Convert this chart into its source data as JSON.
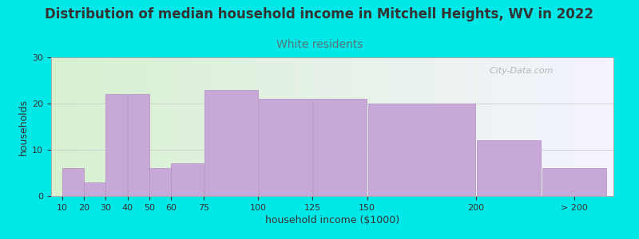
{
  "title": "Distribution of median household income in Mitchell Heights, WV in 2022",
  "subtitle": "White residents",
  "xlabel": "household income ($1000)",
  "ylabel": "households",
  "bar_heights": [
    6,
    3,
    22,
    22,
    6,
    7,
    23,
    21,
    21,
    20,
    12,
    6
  ],
  "bar_color": "#c8a8d8",
  "bar_edge_color": "#b090c0",
  "ylim": [
    0,
    30
  ],
  "yticks": [
    0,
    10,
    20,
    30
  ],
  "background_color": "#00e8e8",
  "plot_bg_left": "#d8f0d0",
  "plot_bg_right": "#f4f4ff",
  "title_fontsize": 12,
  "title_color": "#333333",
  "subtitle_fontsize": 10,
  "subtitle_color": "#557777",
  "axis_label_fontsize": 9,
  "tick_fontsize": 8,
  "watermark_text": "  City-Data.com",
  "watermark_color": "#aaaaaa",
  "tick_positions": [
    10,
    20,
    30,
    40,
    50,
    60,
    75,
    100,
    125,
    150,
    200,
    230,
    260
  ],
  "xtick_vals": [
    10,
    20,
    30,
    40,
    50,
    60,
    75,
    100,
    125,
    150,
    200,
    245
  ],
  "xtick_labels": [
    "10",
    "20",
    "30",
    "40",
    "50",
    "60",
    "75",
    "100",
    "125",
    "150",
    "200",
    "> 200"
  ]
}
